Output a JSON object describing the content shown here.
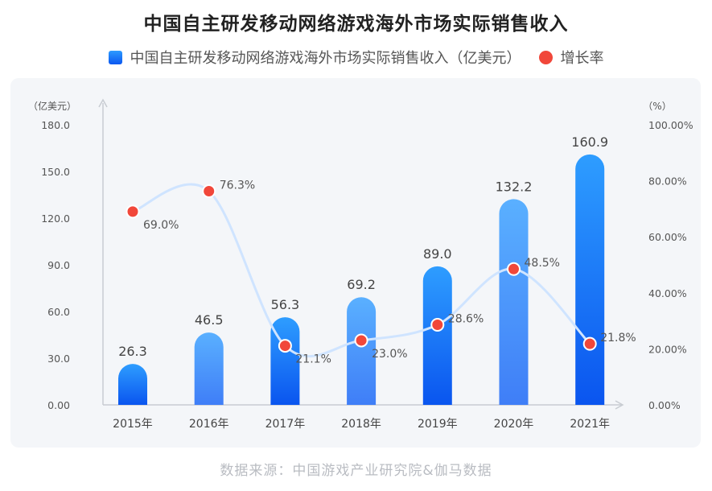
{
  "chart_data": {
    "type": "bar",
    "title": "中国自主研发移动网络游戏海外市场实际销售收入",
    "categories": [
      "2015年",
      "2016年",
      "2017年",
      "2018年",
      "2019年",
      "2020年",
      "2021年"
    ],
    "series": [
      {
        "name": "中国自主研发移动网络游戏海外市场实际销售收入（亿美元）",
        "type": "bar",
        "axis": "left",
        "values": [
          26.3,
          46.5,
          56.3,
          69.2,
          89.0,
          132.2,
          160.9
        ],
        "labels": [
          "26.3",
          "46.5",
          "56.3",
          "69.2",
          "89.0",
          "132.2",
          "160.9"
        ]
      },
      {
        "name": "增长率",
        "type": "line",
        "axis": "right",
        "values": [
          69.0,
          76.3,
          21.1,
          23.0,
          28.6,
          48.5,
          21.8
        ],
        "labels": [
          "69.0%",
          "76.3%",
          "21.1%",
          "23.0%",
          "28.6%",
          "48.5%",
          "21.8%"
        ]
      }
    ],
    "y_left": {
      "unit_label": "（亿美元）",
      "range": [
        0,
        180
      ],
      "ticks": [
        "0.00",
        "30.0",
        "60.0",
        "90.0",
        "120.0",
        "150.0",
        "180.0"
      ]
    },
    "y_right": {
      "unit_label": "（%）",
      "range": [
        0,
        100
      ],
      "ticks": [
        "0.00%",
        "20.00%",
        "40.00%",
        "60.00%",
        "80.00%",
        "100.00%"
      ]
    },
    "grid": false,
    "legend_position": "top-center"
  },
  "source": "数据来源：中国游戏产业研究院&伽马数据",
  "colors": {
    "bar_top": "#2e9dff",
    "bar_bottom": "#0a55ef",
    "bar_light_top": "#5ab0ff",
    "bar_light_bottom": "#3f7ef7",
    "dot": "#f1473a",
    "line": "#cfe4ff",
    "axis": "#c8ccd2",
    "text": "#555555"
  }
}
